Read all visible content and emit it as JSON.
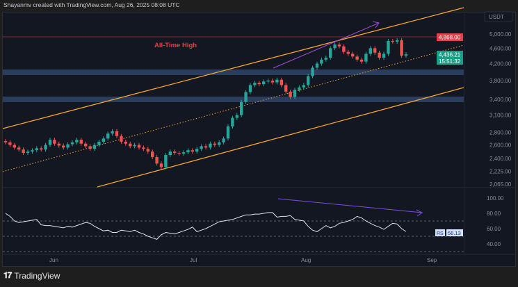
{
  "header": {
    "caption": "Shayanmv created with TradingView.com, Aug 26, 2025 08:08 UTC"
  },
  "footer": {
    "brand": "TradingView",
    "logo_text": "17"
  },
  "colors": {
    "up": "#26a69a",
    "down": "#ef5350",
    "channel": "#f7a531",
    "zone": "#2b3d5c",
    "ath": "#e0404a",
    "arrow": "#a24cd9",
    "rsi_line": "#e0e3eb",
    "background": "#131722"
  },
  "price_pane": {
    "currency": "USDT",
    "scale": "log",
    "ticks": [
      "5,000.00",
      "4,600.00",
      "4,200.00",
      "3,800.00",
      "3,400.00",
      "3,100.00",
      "2,800.00",
      "2,600.00",
      "2,400.00",
      "2,225.00",
      "2,065.00"
    ],
    "tick_values": [
      5000,
      4600,
      4200,
      3800,
      3400,
      3100,
      2800,
      2600,
      2400,
      2225,
      2065
    ],
    "ath_label": {
      "text": "4,868.00",
      "value": 4868
    },
    "last_price": {
      "text": "4,436.21",
      "countdown": "15:51:32",
      "value": 4436.21
    },
    "annotation": "All-Time High"
  },
  "rsi_pane": {
    "ticks": [
      "100.00",
      "80.00",
      "60.00",
      "40.00"
    ],
    "tick_values": [
      100,
      80,
      60,
      40
    ],
    "levels": [
      70,
      50,
      30
    ],
    "badge": "RS",
    "value_label": "56.13"
  },
  "time_axis": [
    "Jun",
    "Jul",
    "Aug",
    "Sep"
  ],
  "chart_data": {
    "type": "candlestick",
    "first_open": 2660,
    "closes": [
      2640,
      2600,
      2560,
      2530,
      2480,
      2500,
      2520,
      2550,
      2530,
      2600,
      2680,
      2620,
      2590,
      2560,
      2610,
      2640,
      2680,
      2620,
      2580,
      2540,
      2600,
      2650,
      2700,
      2780,
      2820,
      2740,
      2650,
      2620,
      2580,
      2600,
      2560,
      2540,
      2500,
      2420,
      2330,
      2280,
      2450,
      2500,
      2480,
      2470,
      2490,
      2520,
      2500,
      2540,
      2580,
      2560,
      2620,
      2600,
      2640,
      2700,
      2900,
      3050,
      3100,
      3350,
      3550,
      3700,
      3750,
      3720,
      3780,
      3800,
      3760,
      3820,
      3700,
      3560,
      3450,
      3600,
      3650,
      3700,
      3900,
      4100,
      4200,
      4300,
      4350,
      4600,
      4700,
      4650,
      4500,
      4450,
      4380,
      4300,
      4250,
      4450,
      4600,
      4480,
      4350,
      4450,
      4800,
      4780,
      4820,
      4400,
      4436.21
    ],
    "rsi": [
      80,
      76,
      70,
      68,
      69,
      70,
      71,
      72,
      65,
      64,
      64,
      63,
      62,
      61,
      63,
      62,
      64,
      66,
      68,
      67,
      63,
      60,
      57,
      58,
      55,
      55,
      58,
      57,
      56,
      58,
      55,
      53,
      50,
      48,
      46,
      52,
      55,
      54,
      53,
      55,
      57,
      59,
      62,
      56,
      58,
      60,
      63,
      66,
      69,
      70,
      71,
      72,
      74,
      76,
      78,
      78,
      79,
      79,
      80,
      81,
      81,
      75,
      76,
      76,
      77,
      72,
      71,
      70,
      63,
      58,
      56,
      60,
      64,
      61,
      63,
      67,
      68,
      70,
      72,
      76,
      74,
      70,
      67,
      64,
      62,
      59,
      63,
      67,
      66,
      60,
      56.13
    ]
  }
}
